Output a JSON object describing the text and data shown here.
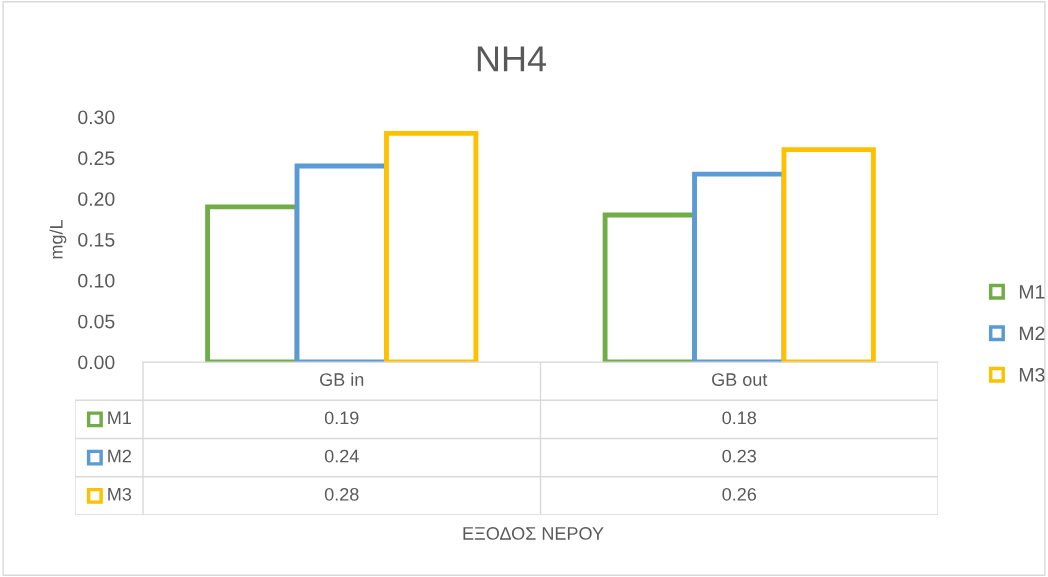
{
  "chart_data": {
    "type": "bar",
    "title": "NH4",
    "ylabel": "mg/L",
    "annotations": [
      "ΕΞΟΔΟΣ ΝΕΡΟΥ"
    ],
    "categories": [
      "GB in",
      "GB out"
    ],
    "series": [
      {
        "name": "M1",
        "color": "#70ad47",
        "values": [
          0.19,
          0.18
        ]
      },
      {
        "name": "M2",
        "color": "#5b9bd5",
        "values": [
          0.24,
          0.23
        ]
      },
      {
        "name": "M3",
        "color": "#ffc000",
        "values": [
          0.28,
          0.26
        ]
      }
    ],
    "ylim": [
      0,
      0.3
    ],
    "yticks": [
      {
        "value": 0,
        "label": "0.00"
      },
      {
        "value": 0.05,
        "label": "0.05"
      },
      {
        "value": 0.1,
        "label": "0.10"
      },
      {
        "value": 0.15,
        "label": "0.15"
      },
      {
        "value": 0.2,
        "label": "0.20"
      },
      {
        "value": 0.25,
        "label": "0.25"
      },
      {
        "value": 0.3,
        "label": "0.30"
      }
    ],
    "grid": false,
    "legend": "right",
    "data_labels": true
  }
}
